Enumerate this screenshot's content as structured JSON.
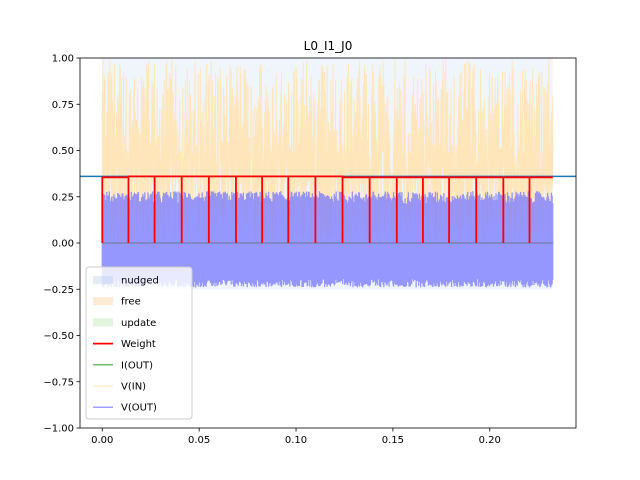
{
  "chart_data": {
    "type": "line",
    "title": "L0_I1_J0",
    "xlabel": "",
    "ylabel": "",
    "xlim": [
      -0.0115,
      0.2445
    ],
    "ylim": [
      -1.0,
      1.0
    ],
    "x_ticks": [
      0.0,
      0.05,
      0.1,
      0.15,
      0.2
    ],
    "x_tick_labels": [
      "0.00",
      "0.05",
      "0.10",
      "0.15",
      "0.20"
    ],
    "y_ticks": [
      -1.0,
      -0.75,
      -0.5,
      -0.25,
      0.0,
      0.25,
      0.5,
      0.75,
      1.0
    ],
    "y_tick_labels": [
      "−1.00",
      "−0.75",
      "−0.50",
      "−0.25",
      "0.00",
      "0.25",
      "0.50",
      "0.75",
      "1.00"
    ],
    "legend_position": "lower-left",
    "grid": false,
    "x_range": [
      0.0,
      0.2325
    ],
    "phase_boundaries": [
      0.0,
      0.0135,
      0.027,
      0.041,
      0.055,
      0.069,
      0.0825,
      0.096,
      0.11,
      0.124,
      0.138,
      0.152,
      0.1655,
      0.179,
      0.193,
      0.207,
      0.2205,
      0.2325
    ],
    "reference_line": {
      "y": 0.36,
      "color": "#1f77b4"
    },
    "series": [
      {
        "name": "nudged",
        "kind": "band",
        "color": "#aec7e8",
        "opacity": 0.35,
        "y0": -0.25,
        "y1": 1.0
      },
      {
        "name": "free",
        "kind": "band",
        "color": "#ffbb78",
        "opacity": 0.3
      },
      {
        "name": "update",
        "kind": "band",
        "color": "#98df8a",
        "opacity": 0.3
      },
      {
        "name": "Weight",
        "kind": "step",
        "color": "#ff0000",
        "values": [
          0.355,
          0.36,
          0.36,
          0.36,
          0.36,
          0.36,
          0.36,
          0.36,
          0.36,
          0.355,
          0.355,
          0.355,
          0.355,
          0.355,
          0.355,
          0.355,
          0.355
        ]
      },
      {
        "name": "I(OUT)",
        "kind": "line",
        "color": "#2ca02c",
        "value": 0.0
      },
      {
        "name": "V(IN)",
        "kind": "noise",
        "color": "#ffe4b3",
        "min": 0.0,
        "max": 1.0
      },
      {
        "name": "V(OUT)",
        "kind": "noise",
        "color": "#7777ff",
        "min": -0.24,
        "max": 0.28
      }
    ]
  }
}
